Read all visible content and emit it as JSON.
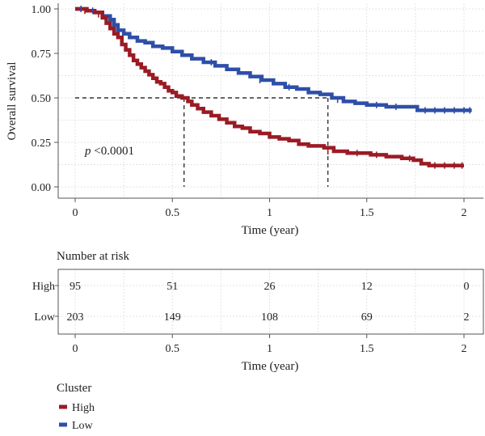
{
  "chart_data": [
    {
      "type": "line",
      "subtype": "kaplan-meier",
      "title": "",
      "xlabel": "Time (year)",
      "ylabel": "Overall survival",
      "xlim": [
        0,
        2.05
      ],
      "ylim": [
        0,
        1.02
      ],
      "xticks": [
        "0",
        "0.5",
        "1",
        "1.5",
        "2"
      ],
      "xtick_values": [
        0,
        0.5,
        1,
        1.5,
        2
      ],
      "yticks": [
        "0.00",
        "0.25",
        "0.50",
        "0.75",
        "1.00"
      ],
      "ytick_values": [
        0,
        0.25,
        0.5,
        0.75,
        1.0
      ],
      "grid": true,
      "annotation_p": "p",
      "annotation_value": "<0.0001",
      "median_survival": [
        {
          "series": "High",
          "x": 0.56,
          "y": 0.5
        },
        {
          "series": "Low",
          "x": 1.3,
          "y": 0.5
        }
      ],
      "series": [
        {
          "name": "High",
          "color": "#9b1b24",
          "x": [
            0,
            0.06,
            0.1,
            0.14,
            0.16,
            0.18,
            0.2,
            0.22,
            0.24,
            0.26,
            0.28,
            0.3,
            0.32,
            0.34,
            0.36,
            0.38,
            0.4,
            0.42,
            0.44,
            0.46,
            0.48,
            0.5,
            0.52,
            0.55,
            0.58,
            0.6,
            0.63,
            0.66,
            0.7,
            0.74,
            0.78,
            0.82,
            0.86,
            0.9,
            0.95,
            1.0,
            1.05,
            1.1,
            1.15,
            1.2,
            1.28,
            1.33,
            1.4,
            1.48,
            1.52,
            1.6,
            1.68,
            1.74,
            1.78,
            1.82,
            2.0
          ],
          "y": [
            1.0,
            0.99,
            0.98,
            0.95,
            0.92,
            0.89,
            0.86,
            0.84,
            0.8,
            0.77,
            0.74,
            0.71,
            0.69,
            0.67,
            0.65,
            0.63,
            0.61,
            0.59,
            0.58,
            0.56,
            0.54,
            0.53,
            0.51,
            0.5,
            0.48,
            0.46,
            0.44,
            0.42,
            0.4,
            0.38,
            0.36,
            0.34,
            0.33,
            0.31,
            0.3,
            0.28,
            0.27,
            0.26,
            0.24,
            0.23,
            0.22,
            0.2,
            0.19,
            0.19,
            0.18,
            0.17,
            0.16,
            0.15,
            0.13,
            0.12,
            0.12
          ],
          "censored_x": [
            0.05,
            0.12,
            1.3,
            1.45,
            1.55,
            1.72,
            1.85,
            1.9,
            1.95,
            1.99
          ],
          "censored_y": [
            0.99,
            0.97,
            0.2,
            0.19,
            0.18,
            0.16,
            0.12,
            0.12,
            0.12,
            0.12
          ]
        },
        {
          "name": "Low",
          "color": "#2e4fa8",
          "x": [
            0,
            0.06,
            0.1,
            0.14,
            0.18,
            0.2,
            0.22,
            0.25,
            0.28,
            0.32,
            0.36,
            0.4,
            0.45,
            0.5,
            0.55,
            0.6,
            0.66,
            0.72,
            0.78,
            0.84,
            0.9,
            0.96,
            1.02,
            1.08,
            1.14,
            1.2,
            1.26,
            1.32,
            1.38,
            1.44,
            1.5,
            1.6,
            1.7,
            1.76,
            2.04
          ],
          "y": [
            1.0,
            0.99,
            0.98,
            0.96,
            0.94,
            0.91,
            0.88,
            0.86,
            0.84,
            0.82,
            0.81,
            0.79,
            0.78,
            0.76,
            0.74,
            0.72,
            0.7,
            0.68,
            0.66,
            0.64,
            0.62,
            0.6,
            0.58,
            0.56,
            0.55,
            0.53,
            0.52,
            0.5,
            0.48,
            0.47,
            0.46,
            0.45,
            0.45,
            0.43,
            0.43
          ],
          "censored_x": [
            0.03,
            0.09,
            0.7,
            0.95,
            1.1,
            1.35,
            1.55,
            1.65,
            1.8,
            1.85,
            1.9,
            1.95,
            2.0,
            2.03
          ],
          "censored_y": [
            1.0,
            0.99,
            0.7,
            0.6,
            0.56,
            0.49,
            0.46,
            0.45,
            0.43,
            0.43,
            0.43,
            0.43,
            0.43,
            0.43
          ]
        }
      ]
    },
    {
      "type": "table",
      "title": "Number at risk",
      "xlabel": "Time (year)",
      "xticks": [
        "0",
        "0.5",
        "1",
        "1.5",
        "2"
      ],
      "xtick_values": [
        0,
        0.5,
        1,
        1.5,
        2
      ],
      "rows": [
        {
          "name": "High",
          "values": [
            "95",
            "51",
            "26",
            "12",
            "0"
          ]
        },
        {
          "name": "Low",
          "values": [
            "203",
            "149",
            "108",
            "69",
            "2"
          ]
        }
      ]
    }
  ],
  "legend": {
    "title": "Cluster",
    "placement": "bottom-left",
    "items": [
      {
        "label": "High",
        "color": "#9b1b24"
      },
      {
        "label": "Low",
        "color": "#2e4fa8"
      }
    ]
  }
}
